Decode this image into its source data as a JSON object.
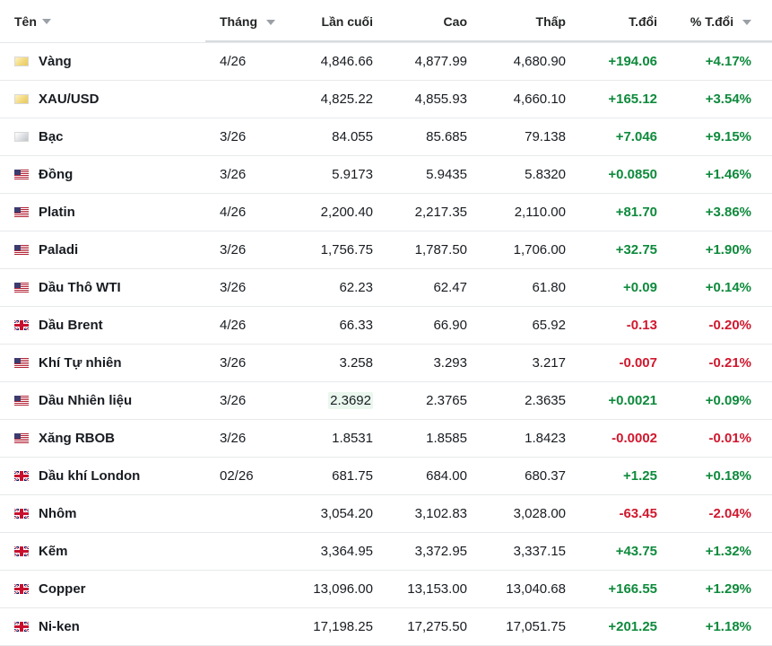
{
  "header": {
    "name": "Tên",
    "month": "Tháng",
    "last": "Lần cuối",
    "high": "Cao",
    "low": "Thấp",
    "change": "T.đổi",
    "change_pct": "% T.đổi"
  },
  "colors": {
    "up": "#0e8a3c",
    "down": "#d0182e"
  },
  "rows": [
    {
      "flag": "gold-icon",
      "name": "Vàng",
      "month": "4/26",
      "last": "4,846.66",
      "high": "4,877.99",
      "low": "4,680.90",
      "change": "+194.06",
      "change_pct": "+4.17%",
      "dir": "up"
    },
    {
      "flag": "gold-icon",
      "name": "XAU/USD",
      "month": "",
      "last": "4,825.22",
      "high": "4,855.93",
      "low": "4,660.10",
      "change": "+165.12",
      "change_pct": "+3.54%",
      "dir": "up"
    },
    {
      "flag": "silver-icon",
      "name": "Bạc",
      "month": "3/26",
      "last": "84.055",
      "high": "85.685",
      "low": "79.138",
      "change": "+7.046",
      "change_pct": "+9.15%",
      "dir": "up"
    },
    {
      "flag": "us-flag-icon",
      "name": "Đồng",
      "month": "3/26",
      "last": "5.9173",
      "high": "5.9435",
      "low": "5.8320",
      "change": "+0.0850",
      "change_pct": "+1.46%",
      "dir": "up"
    },
    {
      "flag": "us-flag-icon",
      "name": "Platin",
      "month": "4/26",
      "last": "2,200.40",
      "high": "2,217.35",
      "low": "2,110.00",
      "change": "+81.70",
      "change_pct": "+3.86%",
      "dir": "up"
    },
    {
      "flag": "us-flag-icon",
      "name": "Paladi",
      "month": "3/26",
      "last": "1,756.75",
      "high": "1,787.50",
      "low": "1,706.00",
      "change": "+32.75",
      "change_pct": "+1.90%",
      "dir": "up"
    },
    {
      "flag": "us-flag-icon",
      "name": "Dầu Thô WTI",
      "month": "3/26",
      "last": "62.23",
      "high": "62.47",
      "low": "61.80",
      "change": "+0.09",
      "change_pct": "+0.14%",
      "dir": "up"
    },
    {
      "flag": "uk-flag-icon",
      "name": "Dầu Brent",
      "month": "4/26",
      "last": "66.33",
      "high": "66.90",
      "low": "65.92",
      "change": "-0.13",
      "change_pct": "-0.20%",
      "dir": "down"
    },
    {
      "flag": "us-flag-icon",
      "name": "Khí Tự nhiên",
      "month": "3/26",
      "last": "3.258",
      "high": "3.293",
      "low": "3.217",
      "change": "-0.007",
      "change_pct": "-0.21%",
      "dir": "down"
    },
    {
      "flag": "us-flag-icon",
      "name": "Dầu Nhiên liệu",
      "month": "3/26",
      "last": "2.3692",
      "high": "2.3765",
      "low": "2.3635",
      "change": "+0.0021",
      "change_pct": "+0.09%",
      "dir": "up",
      "highlight": true
    },
    {
      "flag": "us-flag-icon",
      "name": "Xăng RBOB",
      "month": "3/26",
      "last": "1.8531",
      "high": "1.8585",
      "low": "1.8423",
      "change": "-0.0002",
      "change_pct": "-0.01%",
      "dir": "down"
    },
    {
      "flag": "uk-flag-icon",
      "name": "Dầu khí London",
      "month": "02/26",
      "last": "681.75",
      "high": "684.00",
      "low": "680.37",
      "change": "+1.25",
      "change_pct": "+0.18%",
      "dir": "up"
    },
    {
      "flag": "uk-flag-icon",
      "name": "Nhôm",
      "month": "",
      "last": "3,054.20",
      "high": "3,102.83",
      "low": "3,028.00",
      "change": "-63.45",
      "change_pct": "-2.04%",
      "dir": "down"
    },
    {
      "flag": "uk-flag-icon",
      "name": "Kẽm",
      "month": "",
      "last": "3,364.95",
      "high": "3,372.95",
      "low": "3,337.15",
      "change": "+43.75",
      "change_pct": "+1.32%",
      "dir": "up"
    },
    {
      "flag": "uk-flag-icon",
      "name": "Copper",
      "month": "",
      "last": "13,096.00",
      "high": "13,153.00",
      "low": "13,040.68",
      "change": "+166.55",
      "change_pct": "+1.29%",
      "dir": "up"
    },
    {
      "flag": "uk-flag-icon",
      "name": "Ni-ken",
      "month": "",
      "last": "17,198.25",
      "high": "17,275.50",
      "low": "17,051.75",
      "change": "+201.25",
      "change_pct": "+1.18%",
      "dir": "up"
    }
  ]
}
